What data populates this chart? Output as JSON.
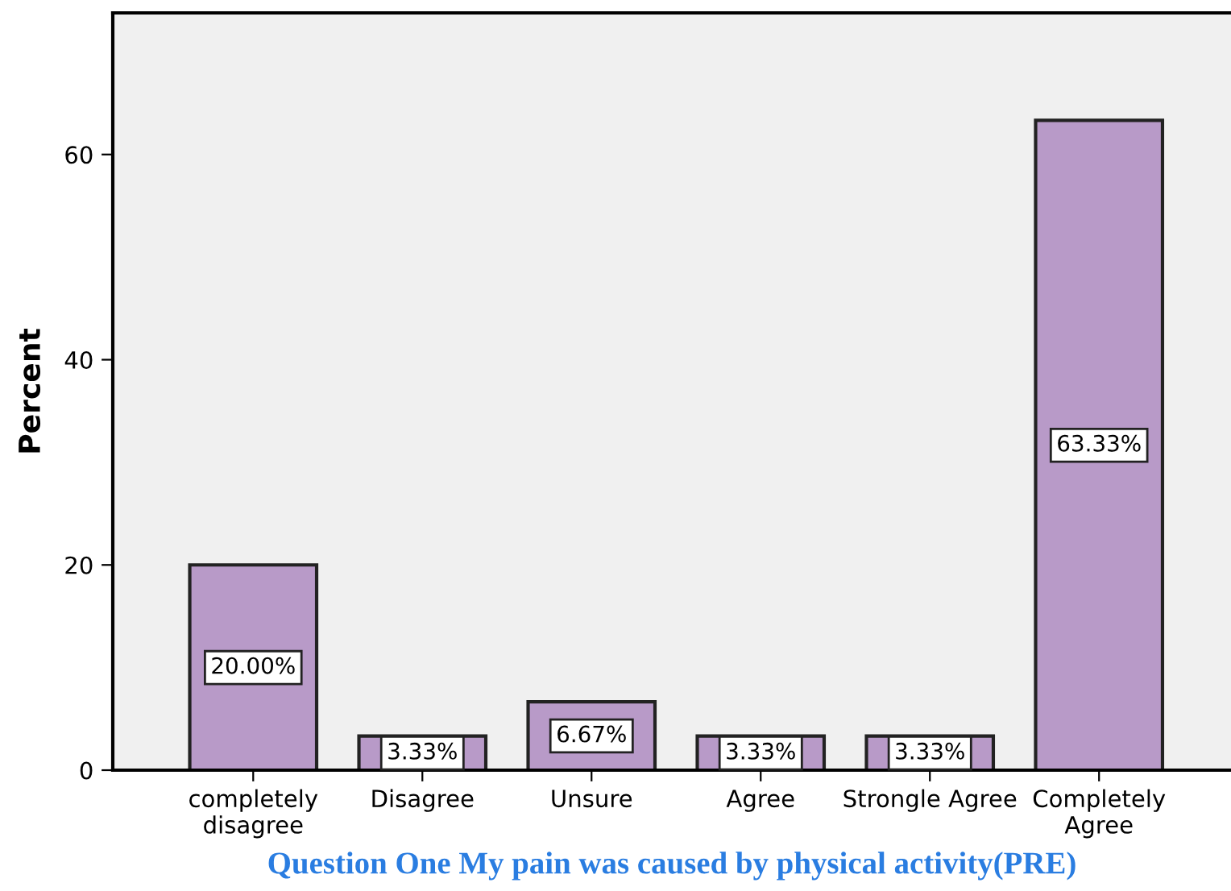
{
  "chart_data": {
    "type": "bar",
    "xlabel": "Question One My pain was caused by physical activity(PRE)",
    "ylabel": "Percent",
    "categories": [
      "completely\ndisagree",
      "Disagree",
      "Unsure",
      "Agree",
      "Strongle Agree",
      "Completely\nAgree"
    ],
    "values": [
      20.0,
      3.33,
      6.67,
      3.33,
      3.33,
      63.33
    ],
    "value_labels": [
      "20.00%",
      "3.33%",
      "6.67%",
      "3.33%",
      "3.33%",
      "63.33%"
    ],
    "color": "#b89ac8",
    "ylim": [
      0,
      73.8
    ],
    "yticks": [
      0,
      20,
      40,
      60
    ],
    "grid": false,
    "legend": false
  }
}
